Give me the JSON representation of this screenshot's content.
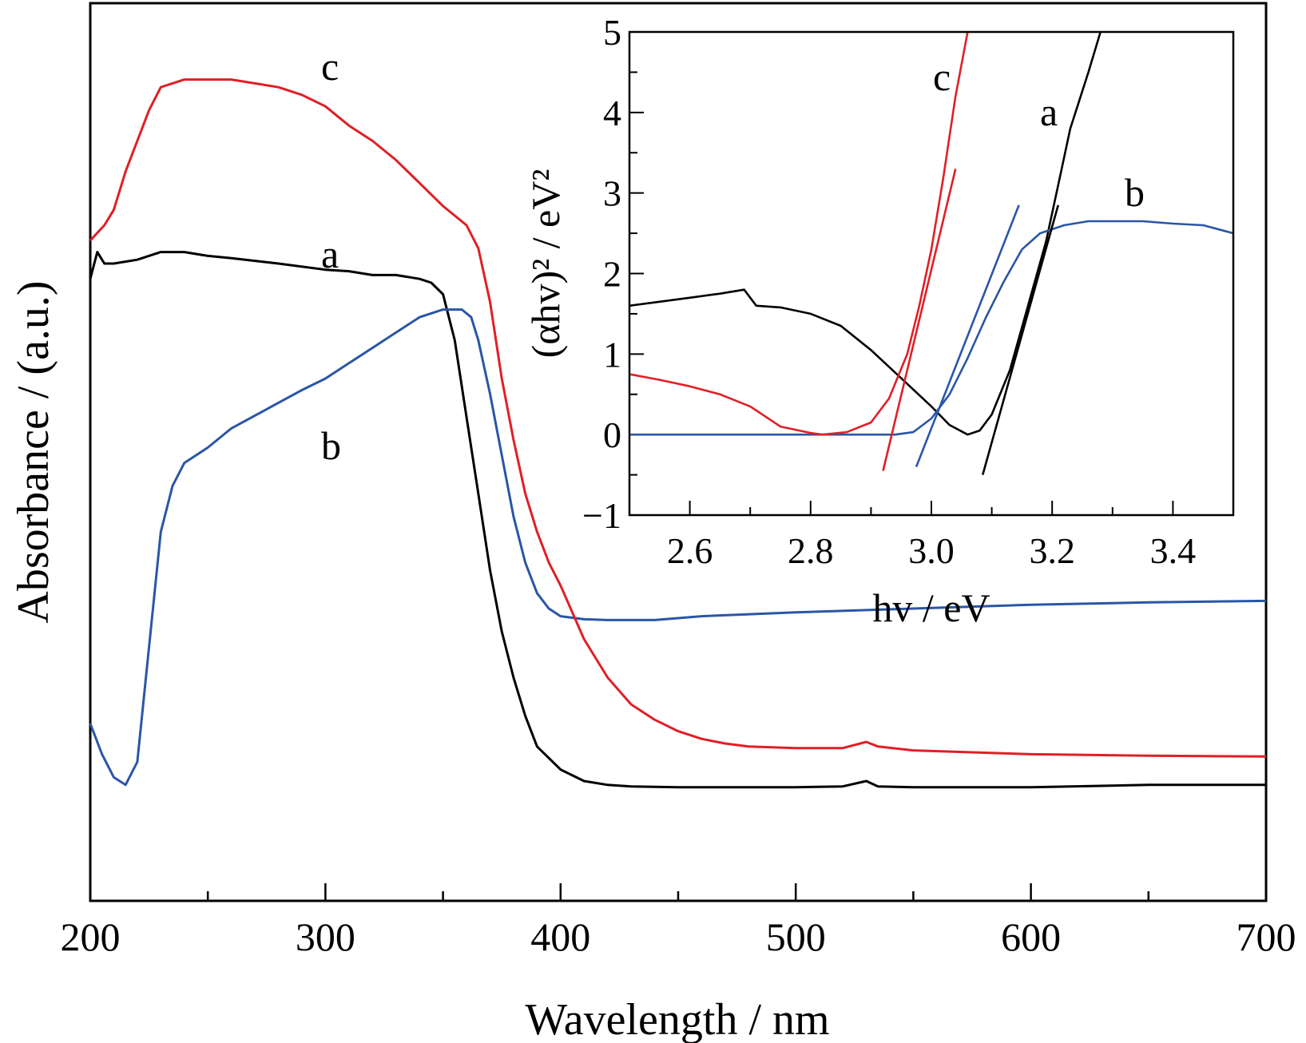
{
  "chart_data": [
    {
      "type": "line",
      "xlabel": "Wavelength / nm",
      "ylabel": "Absorbance / (a.u.)",
      "xlim": [
        200,
        700
      ],
      "ylim": [
        0,
        1
      ],
      "x_ticks": [
        "200",
        "300",
        "400",
        "500",
        "600",
        "700"
      ],
      "y_ticks_labeled": false,
      "grid": false,
      "legend": "none (curves labeled directly)",
      "series": [
        {
          "name": "a",
          "color": "#000000",
          "points": [
            [
              200,
              0.73
            ],
            [
              203,
              0.765
            ],
            [
              206,
              0.75
            ],
            [
              210,
              0.75
            ],
            [
              220,
              0.755
            ],
            [
              230,
              0.765
            ],
            [
              240,
              0.765
            ],
            [
              250,
              0.76
            ],
            [
              260,
              0.757
            ],
            [
              280,
              0.75
            ],
            [
              300,
              0.742
            ],
            [
              310,
              0.74
            ],
            [
              320,
              0.735
            ],
            [
              330,
              0.735
            ],
            [
              340,
              0.73
            ],
            [
              345,
              0.725
            ],
            [
              350,
              0.71
            ],
            [
              355,
              0.65
            ],
            [
              360,
              0.55
            ],
            [
              365,
              0.45
            ],
            [
              370,
              0.35
            ],
            [
              375,
              0.27
            ],
            [
              380,
              0.21
            ],
            [
              385,
              0.16
            ],
            [
              390,
              0.12
            ],
            [
              400,
              0.09
            ],
            [
              410,
              0.075
            ],
            [
              420,
              0.07
            ],
            [
              430,
              0.068
            ],
            [
              450,
              0.067
            ],
            [
              500,
              0.067
            ],
            [
              520,
              0.068
            ],
            [
              530,
              0.075
            ],
            [
              535,
              0.068
            ],
            [
              550,
              0.067
            ],
            [
              600,
              0.067
            ],
            [
              650,
              0.07
            ],
            [
              700,
              0.07
            ]
          ]
        },
        {
          "name": "b",
          "color": "#2a56a6",
          "points": [
            [
              200,
              0.15
            ],
            [
              205,
              0.11
            ],
            [
              210,
              0.08
            ],
            [
              215,
              0.07
            ],
            [
              220,
              0.1
            ],
            [
              225,
              0.25
            ],
            [
              230,
              0.4
            ],
            [
              235,
              0.46
            ],
            [
              240,
              0.49
            ],
            [
              250,
              0.51
            ],
            [
              260,
              0.535
            ],
            [
              275,
              0.56
            ],
            [
              290,
              0.585
            ],
            [
              300,
              0.6
            ],
            [
              310,
              0.62
            ],
            [
              320,
              0.64
            ],
            [
              330,
              0.66
            ],
            [
              340,
              0.68
            ],
            [
              350,
              0.69
            ],
            [
              358,
              0.69
            ],
            [
              362,
              0.68
            ],
            [
              365,
              0.65
            ],
            [
              370,
              0.58
            ],
            [
              375,
              0.5
            ],
            [
              380,
              0.42
            ],
            [
              385,
              0.36
            ],
            [
              390,
              0.32
            ],
            [
              395,
              0.3
            ],
            [
              400,
              0.29
            ],
            [
              410,
              0.286
            ],
            [
              420,
              0.285
            ],
            [
              440,
              0.285
            ],
            [
              460,
              0.29
            ],
            [
              500,
              0.295
            ],
            [
              550,
              0.3
            ],
            [
              600,
              0.305
            ],
            [
              650,
              0.308
            ],
            [
              700,
              0.31
            ]
          ]
        },
        {
          "name": "c",
          "color": "#e01f26",
          "points": [
            [
              200,
              0.78
            ],
            [
              203,
              0.79
            ],
            [
              206,
              0.8
            ],
            [
              210,
              0.82
            ],
            [
              215,
              0.87
            ],
            [
              220,
              0.91
            ],
            [
              225,
              0.95
            ],
            [
              230,
              0.98
            ],
            [
              240,
              0.99
            ],
            [
              250,
              0.99
            ],
            [
              260,
              0.99
            ],
            [
              270,
              0.985
            ],
            [
              280,
              0.98
            ],
            [
              290,
              0.97
            ],
            [
              300,
              0.955
            ],
            [
              310,
              0.93
            ],
            [
              320,
              0.91
            ],
            [
              330,
              0.885
            ],
            [
              340,
              0.855
            ],
            [
              350,
              0.825
            ],
            [
              360,
              0.8
            ],
            [
              365,
              0.77
            ],
            [
              370,
              0.7
            ],
            [
              375,
              0.6
            ],
            [
              380,
              0.52
            ],
            [
              385,
              0.45
            ],
            [
              390,
              0.4
            ],
            [
              395,
              0.36
            ],
            [
              400,
              0.33
            ],
            [
              410,
              0.26
            ],
            [
              420,
              0.21
            ],
            [
              430,
              0.175
            ],
            [
              440,
              0.155
            ],
            [
              450,
              0.14
            ],
            [
              460,
              0.13
            ],
            [
              470,
              0.124
            ],
            [
              480,
              0.12
            ],
            [
              500,
              0.118
            ],
            [
              520,
              0.118
            ],
            [
              530,
              0.126
            ],
            [
              535,
              0.12
            ],
            [
              550,
              0.115
            ],
            [
              600,
              0.11
            ],
            [
              650,
              0.108
            ],
            [
              700,
              0.107
            ]
          ]
        }
      ],
      "annotations": [
        "a",
        "b",
        "c"
      ]
    },
    {
      "type": "line",
      "xlabel": "hv / eV",
      "ylabel": "(αhv)² / eV²",
      "xlim": [
        2.5,
        3.5
      ],
      "ylim": [
        -1,
        5
      ],
      "x_ticks": [
        "2.6",
        "2.8",
        "3.0",
        "3.2",
        "3.4"
      ],
      "y_ticks": [
        "-1",
        "0",
        "1",
        "2",
        "3",
        "4",
        "5"
      ],
      "grid": false,
      "legend": "none (curves labeled directly)",
      "series": [
        {
          "name": "a",
          "color": "#000000",
          "points": [
            [
              2.5,
              1.6
            ],
            [
              2.55,
              1.65
            ],
            [
              2.6,
              1.7
            ],
            [
              2.65,
              1.75
            ],
            [
              2.69,
              1.8
            ],
            [
              2.71,
              1.6
            ],
            [
              2.75,
              1.58
            ],
            [
              2.8,
              1.5
            ],
            [
              2.85,
              1.35
            ],
            [
              2.9,
              1.05
            ],
            [
              2.95,
              0.7
            ],
            [
              3.0,
              0.35
            ],
            [
              3.03,
              0.12
            ],
            [
              3.06,
              0.0
            ],
            [
              3.08,
              0.05
            ],
            [
              3.1,
              0.25
            ],
            [
              3.13,
              0.8
            ],
            [
              3.16,
              1.6
            ],
            [
              3.19,
              2.4
            ],
            [
              3.21,
              3.1
            ],
            [
              3.23,
              3.8
            ],
            [
              3.26,
              4.5
            ],
            [
              3.28,
              5.0
            ]
          ]
        },
        {
          "name": "b",
          "color": "#2a56a6",
          "points": [
            [
              2.5,
              0.0
            ],
            [
              2.7,
              0.0
            ],
            [
              2.85,
              0.0
            ],
            [
              2.94,
              0.0
            ],
            [
              2.97,
              0.03
            ],
            [
              3.0,
              0.2
            ],
            [
              3.03,
              0.5
            ],
            [
              3.06,
              0.95
            ],
            [
              3.09,
              1.45
            ],
            [
              3.12,
              1.9
            ],
            [
              3.15,
              2.3
            ],
            [
              3.18,
              2.5
            ],
            [
              3.22,
              2.6
            ],
            [
              3.26,
              2.65
            ],
            [
              3.3,
              2.65
            ],
            [
              3.35,
              2.65
            ],
            [
              3.4,
              2.62
            ],
            [
              3.45,
              2.6
            ],
            [
              3.5,
              2.5
            ]
          ]
        },
        {
          "name": "c",
          "color": "#e01f26",
          "points": [
            [
              2.5,
              0.75
            ],
            [
              2.55,
              0.68
            ],
            [
              2.6,
              0.6
            ],
            [
              2.65,
              0.5
            ],
            [
              2.7,
              0.35
            ],
            [
              2.75,
              0.1
            ],
            [
              2.8,
              0.02
            ],
            [
              2.82,
              0.0
            ],
            [
              2.86,
              0.03
            ],
            [
              2.9,
              0.15
            ],
            [
              2.93,
              0.45
            ],
            [
              2.96,
              1.0
            ],
            [
              2.98,
              1.6
            ],
            [
              3.0,
              2.3
            ],
            [
              3.02,
              3.2
            ],
            [
              3.04,
              4.2
            ],
            [
              3.06,
              5.0
            ]
          ]
        }
      ],
      "tangent_lines": [
        {
          "series": "c",
          "color": "#e01f26",
          "from": [
            2.92,
            -0.45
          ],
          "to": [
            3.04,
            3.3
          ]
        },
        {
          "series": "b",
          "color": "#2a56a6",
          "from": [
            2.975,
            -0.4
          ],
          "to": [
            3.145,
            2.85
          ]
        },
        {
          "series": "a",
          "color": "#000000",
          "from": [
            3.085,
            -0.5
          ],
          "to": [
            3.21,
            2.85
          ]
        }
      ],
      "annotations": [
        "c",
        "a",
        "b"
      ]
    }
  ]
}
